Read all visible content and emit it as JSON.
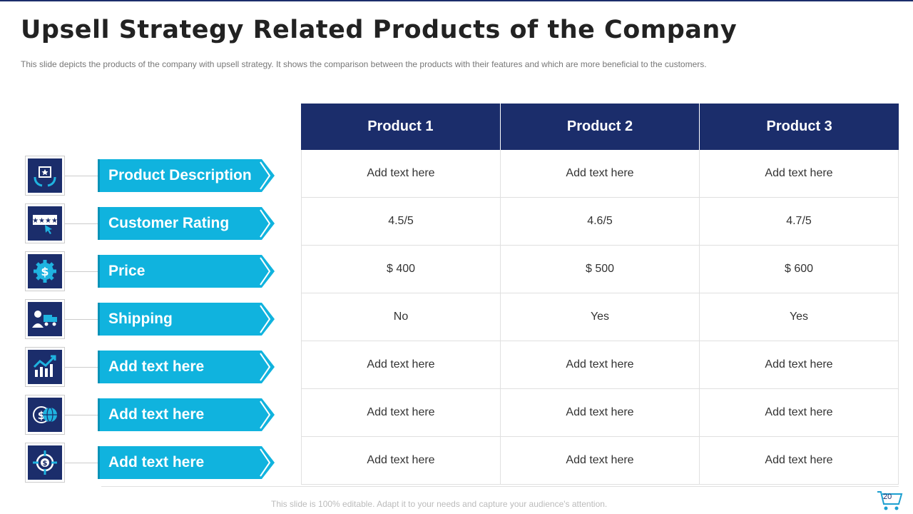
{
  "title": "Upsell Strategy Related Products of the Company",
  "subtitle": "This slide depicts the products of the company with upsell strategy. It shows the comparison between the products with their features and which are more beneficial to the customers.",
  "colors": {
    "navy": "#1b2d6b",
    "cyan": "#10b3de",
    "cyan_dark": "#0a93b8"
  },
  "table": {
    "headers": [
      "Product 1",
      "Product 2",
      "Product 3"
    ],
    "rows": [
      {
        "label": "Product Description",
        "icon": "product-box-icon",
        "cells": [
          "Add text here",
          "Add text here",
          "Add text here"
        ]
      },
      {
        "label": "Customer Rating",
        "icon": "rating-stars-icon",
        "cells": [
          "4.5/5",
          "4.6/5",
          "4.7/5"
        ]
      },
      {
        "label": "Price",
        "icon": "dollar-gear-icon",
        "cells": [
          "$ 400",
          "$ 500",
          "$ 600"
        ]
      },
      {
        "label": "Shipping",
        "icon": "delivery-truck-icon",
        "cells": [
          "No",
          "Yes",
          "Yes"
        ]
      },
      {
        "label": "Add text here",
        "icon": "growth-chart-icon",
        "cells": [
          "Add text here",
          "Add text here",
          "Add text here"
        ]
      },
      {
        "label": "Add text here",
        "icon": "dollar-globe-icon",
        "cells": [
          "Add text here",
          "Add text here",
          "Add text here"
        ]
      },
      {
        "label": "Add text here",
        "icon": "target-dollar-icon",
        "cells": [
          "Add text here",
          "Add text here",
          "Add text here"
        ]
      }
    ]
  },
  "footer": "This slide is 100% editable. Adapt it to your needs and capture your audience's attention.",
  "page_number": "20"
}
